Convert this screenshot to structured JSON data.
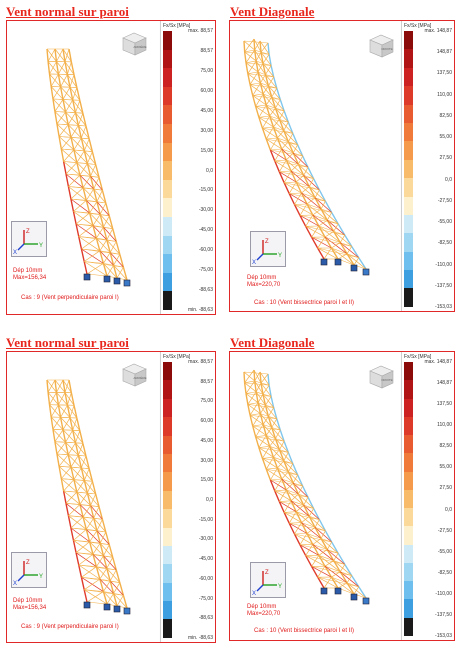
{
  "panels": [
    {
      "title": "Vent normal sur paroi",
      "legend_header": "Fx/Sx [MPa]",
      "legend_labels": [
        "max. 88,57",
        "88,57",
        "75,00",
        "60,00",
        "45,00",
        "30,00",
        "15,00",
        "0,0",
        "-15,00",
        "-30,00",
        "-45,00",
        "-60,00",
        "-75,00",
        "-88,63",
        "min. -88,63"
      ],
      "info_line1": "Dép  10mm",
      "info_line2": "Max=156,34",
      "cas": "Cas : 9 (Vent perpendiculaire paroi I)",
      "view_cube_label": "ARRIÈRE",
      "axis_labels": [
        "Z",
        "Y",
        "X"
      ]
    },
    {
      "title": "Vent Diagonale",
      "legend_header": "Fx/Sx [MPa]",
      "legend_labels": [
        "max. 148,87",
        "148,87",
        "137,50",
        "110,00",
        "82,50",
        "55,00",
        "27,50",
        "0,0",
        "-27,50",
        "-55,00",
        "-82,50",
        "-110,00",
        "-137,50",
        "-153,03"
      ],
      "info_line1": "Dép  10mm",
      "info_line2": "Max=220,70",
      "cas": "Cas : 10 (Vent bissectrice paroi I et II)",
      "view_cube_label": "DROITE",
      "axis_labels": [
        "Z",
        "Y",
        "X"
      ]
    },
    {
      "title": "Vent normal sur paroi",
      "legend_header": "Fx/Sx [MPa]",
      "legend_labels": [
        "max. 88,57",
        "88,57",
        "75,00",
        "60,00",
        "45,00",
        "30,00",
        "15,00",
        "0,0",
        "-15,00",
        "-30,00",
        "-45,00",
        "-60,00",
        "-75,00",
        "-88,63",
        "min. -88,63"
      ],
      "info_line1": "Dép  10mm",
      "info_line2": "Max=156,34",
      "cas": "Cas : 9 (Vent perpendiculaire paroi I)",
      "view_cube_label": "ARRIÈRE",
      "axis_labels": [
        "Z",
        "Y",
        "X"
      ]
    },
    {
      "title": "Vent Diagonale",
      "legend_header": "Fx/Sx [MPa]",
      "legend_labels": [
        "max. 148,87",
        "148,87",
        "137,50",
        "110,00",
        "82,50",
        "55,00",
        "27,50",
        "0,0",
        "-27,50",
        "-55,00",
        "-82,50",
        "-110,00",
        "-137,50",
        "-153,03"
      ],
      "info_line1": "Dép  10mm",
      "info_line2": "Max=220,70",
      "cas": "Cas : 10 (Vent bissectrice paroi I et II)",
      "view_cube_label": "DROITE",
      "axis_labels": [
        "Z",
        "Y",
        "X"
      ]
    }
  ],
  "colors": {
    "accent": "#e8281e",
    "scale": [
      "#8b0a0a",
      "#b01414",
      "#cc2222",
      "#de3a2a",
      "#e85a30",
      "#f07a3a",
      "#f59a4a",
      "#f8bb6a",
      "#fbd99a",
      "#fdf0cc",
      "#cfeaf7",
      "#9fd6f2",
      "#6fbfee",
      "#3e9fe0",
      "#1a1a1a"
    ],
    "tower_main": "#f3b04a",
    "tower_stress": "#e03a2a",
    "tower_cool": "#7fc6ec"
  }
}
